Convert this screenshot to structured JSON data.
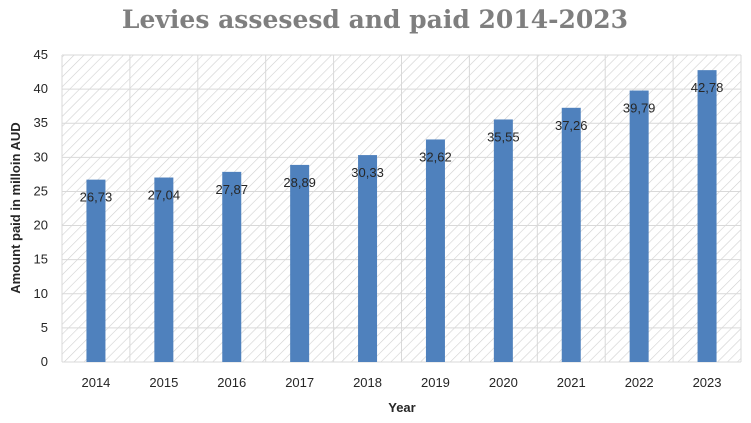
{
  "chart_data": {
    "type": "bar",
    "title": "Levies assesesd and paid 2014-2023",
    "xlabel": "Year",
    "ylabel": "Amount paid in milloin AUD",
    "categories": [
      "2014",
      "2015",
      "2016",
      "2017",
      "2018",
      "2019",
      "2020",
      "2021",
      "2022",
      "2023"
    ],
    "values": [
      26.73,
      27.04,
      27.87,
      28.89,
      30.33,
      32.62,
      35.55,
      37.26,
      39.79,
      42.78
    ],
    "value_labels": [
      "26,73",
      "27,04",
      "27,87",
      "28,89",
      "30,33",
      "32,62",
      "35,55",
      "37,26",
      "39,79",
      "42,78"
    ],
    "y_ticks": [
      "0",
      "5",
      "10",
      "15",
      "20",
      "25",
      "30",
      "35",
      "40",
      "45"
    ],
    "ylim": [
      0,
      45
    ],
    "grid": true,
    "legend": "none",
    "colors": {
      "bar": "#4f81bd",
      "grid": "#d9d9d9",
      "hatch": "#d0d0d0",
      "title": "#7f7f7f"
    }
  }
}
